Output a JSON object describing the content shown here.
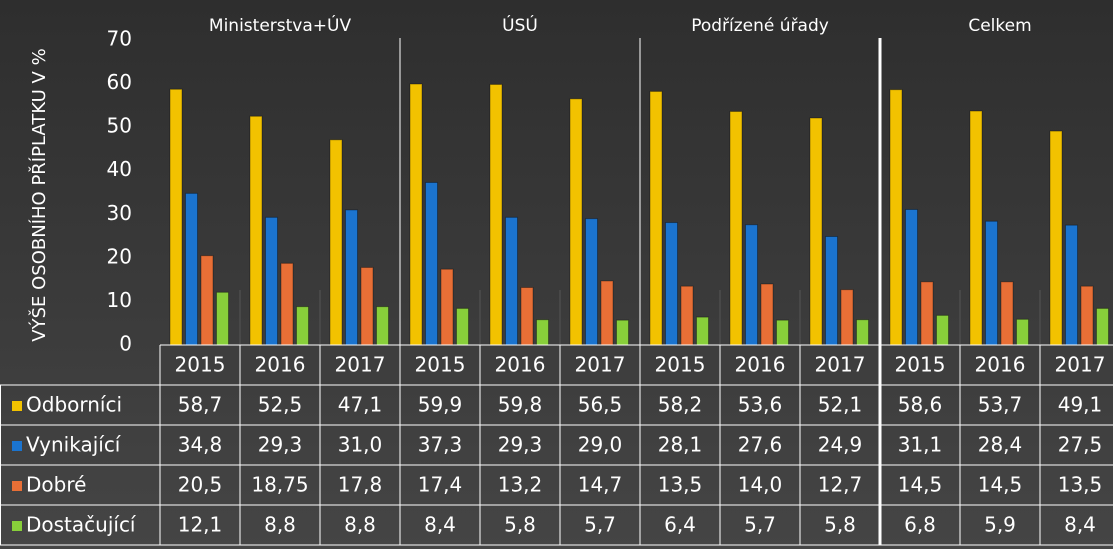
{
  "chart_data": {
    "type": "bar",
    "y_axis_label": "VÝŠE OSOBNÍHO PŘÍPLATKU V %",
    "groups": [
      "Ministerstva+ÚV",
      "ÚSÚ",
      "Podřízené úřady",
      "Celkem"
    ],
    "categories": [
      "2015",
      "2016",
      "2017",
      "2015",
      "2016",
      "2017",
      "2015",
      "2016",
      "2017",
      "2015",
      "2016",
      "2017"
    ],
    "ylim": [
      0,
      70
    ],
    "yticks": [
      0,
      10,
      20,
      30,
      40,
      50,
      60,
      70
    ],
    "grid": false,
    "series": [
      {
        "name": "Odborníci",
        "color": "#f2c200",
        "values": [
          58.7,
          52.5,
          47.1,
          59.9,
          59.8,
          56.5,
          58.2,
          53.6,
          52.1,
          58.6,
          53.7,
          49.1
        ],
        "value_labels": [
          "58,7",
          "52,5",
          "47,1",
          "59,9",
          "59,8",
          "56,5",
          "58,2",
          "53,6",
          "52,1",
          "58,6",
          "53,7",
          "49,1"
        ]
      },
      {
        "name": "Vynikající",
        "color": "#1b74cf",
        "values": [
          34.8,
          29.3,
          31.0,
          37.3,
          29.3,
          29.0,
          28.1,
          27.6,
          24.9,
          31.1,
          28.4,
          27.5
        ],
        "value_labels": [
          "34,8",
          "29,3",
          "31,0",
          "37,3",
          "29,3",
          "29,0",
          "28,1",
          "27,6",
          "24,9",
          "31,1",
          "28,4",
          "27,5"
        ]
      },
      {
        "name": "Dobré",
        "color": "#e86f36",
        "values": [
          20.5,
          18.75,
          17.8,
          17.4,
          13.2,
          14.7,
          13.5,
          14.0,
          12.7,
          14.5,
          14.5,
          13.5
        ],
        "value_labels": [
          "20,5",
          "18,75",
          "17,8",
          "17,4",
          "13,2",
          "14,7",
          "13,5",
          "14,0",
          "12,7",
          "14,5",
          "14,5",
          "13,5"
        ]
      },
      {
        "name": "Dostačující",
        "color": "#88cf3a",
        "values": [
          12.1,
          8.8,
          8.8,
          8.4,
          5.8,
          5.7,
          6.4,
          5.7,
          5.8,
          6.8,
          5.9,
          8.4
        ],
        "value_labels": [
          "12,1",
          "8,8",
          "8,8",
          "8,4",
          "5,8",
          "5,7",
          "6,4",
          "5,7",
          "5,8",
          "6,8",
          "5,9",
          "8,4"
        ]
      }
    ]
  }
}
